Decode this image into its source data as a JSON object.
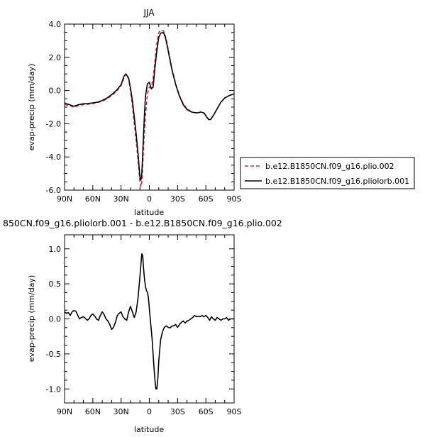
{
  "chart_data": [
    {
      "type": "line",
      "title": "JJA",
      "xlabel": "latitude",
      "ylabel": "evap-precip (mm/day)",
      "xlim": [
        90,
        -90
      ],
      "ylim": [
        -6,
        4
      ],
      "x_ticks": [
        90,
        60,
        30,
        0,
        -30,
        -60,
        -90
      ],
      "x_tick_labels": [
        "90N",
        "60N",
        "30N",
        "0",
        "30S",
        "60S",
        "90S"
      ],
      "y_ticks": [
        -6,
        -4,
        -2,
        0,
        2,
        4
      ],
      "y_tick_labels": [
        "-6.0",
        "-4.0",
        "-2.0",
        "0.0",
        "2.0",
        "4.0"
      ],
      "legend_position": "right",
      "series": [
        {
          "name": "b.e12.B1850CN.f09_g16.plio.002",
          "color": "#e8202a",
          "style": "dashed",
          "x": [
            90,
            85,
            80,
            75,
            70,
            65,
            60,
            55,
            50,
            45,
            40,
            35,
            30,
            27,
            25,
            22,
            20,
            18,
            16,
            14,
            12,
            10,
            9,
            8,
            7,
            6,
            5,
            4,
            2,
            0,
            -2,
            -4,
            -6,
            -8,
            -10,
            -12,
            -15,
            -17,
            -19,
            -21,
            -24,
            -28,
            -32,
            -36,
            -40,
            -45,
            -50,
            -55,
            -58,
            -61,
            -63,
            -65,
            -68,
            -72,
            -76,
            -80,
            -85,
            -90
          ],
          "y": [
            -0.85,
            -0.9,
            -1.0,
            -0.9,
            -0.85,
            -0.82,
            -0.78,
            -0.72,
            -0.65,
            -0.5,
            -0.3,
            -0.05,
            0.3,
            0.75,
            1.0,
            0.7,
            0.0,
            -0.9,
            -2.0,
            -3.0,
            -4.2,
            -5.5,
            -5.8,
            -5.5,
            -4.5,
            -3.3,
            -2.2,
            -1.4,
            -0.2,
            0.2,
            0.2,
            0.7,
            1.8,
            2.8,
            3.5,
            3.62,
            3.6,
            3.3,
            2.8,
            2.2,
            1.3,
            0.4,
            -0.3,
            -0.8,
            -1.1,
            -1.3,
            -1.35,
            -1.3,
            -1.35,
            -1.6,
            -1.75,
            -1.75,
            -1.5,
            -1.1,
            -0.7,
            -0.45,
            -0.3,
            -0.2
          ]
        },
        {
          "name": "b.e12.B1850CN.f09_g16.pliolorb.001",
          "color": "#000000",
          "style": "solid",
          "x": [
            90,
            85,
            80,
            75,
            70,
            65,
            60,
            55,
            50,
            45,
            40,
            35,
            30,
            27,
            25,
            22,
            20,
            18,
            16,
            14,
            12,
            10,
            9,
            8,
            7,
            6,
            5,
            4,
            2,
            0,
            -2,
            -4,
            -6,
            -8,
            -10,
            -12,
            -15,
            -17,
            -19,
            -21,
            -24,
            -28,
            -32,
            -36,
            -40,
            -45,
            -50,
            -55,
            -58,
            -61,
            -63,
            -65,
            -68,
            -72,
            -76,
            -80,
            -85,
            -90
          ],
          "y": [
            -0.75,
            -0.85,
            -0.95,
            -0.85,
            -0.8,
            -0.78,
            -0.75,
            -0.7,
            -0.6,
            -0.45,
            -0.25,
            0.0,
            0.35,
            0.85,
            1.0,
            0.75,
            0.15,
            -0.6,
            -1.6,
            -2.6,
            -3.8,
            -5.2,
            -5.4,
            -5.0,
            -3.8,
            -2.5,
            -1.2,
            -0.3,
            0.4,
            0.5,
            0.1,
            0.2,
            1.4,
            2.4,
            3.2,
            3.45,
            3.5,
            3.2,
            2.7,
            2.1,
            1.25,
            0.35,
            -0.35,
            -0.85,
            -1.15,
            -1.3,
            -1.35,
            -1.3,
            -1.35,
            -1.6,
            -1.75,
            -1.75,
            -1.5,
            -1.1,
            -0.7,
            -0.45,
            -0.3,
            -0.2
          ]
        }
      ]
    },
    {
      "type": "line",
      "title": "850CN.f09_g16.pliolorb.001 - b.e12.B1850CN.f09_g16.plio.002",
      "xlabel": "latitude",
      "ylabel": "evap-precip (mm/day)",
      "xlim": [
        90,
        -90
      ],
      "ylim": [
        -1.2,
        1.2
      ],
      "x_ticks": [
        90,
        60,
        30,
        0,
        -30,
        -60,
        -90
      ],
      "x_tick_labels": [
        "90N",
        "60N",
        "30N",
        "0",
        "30S",
        "60S",
        "90S"
      ],
      "y_ticks": [
        -1.0,
        -0.5,
        0.0,
        0.5,
        1.0
      ],
      "y_tick_labels": [
        "-1.0",
        "-0.5",
        "0.0",
        "0.5",
        "1.0"
      ],
      "series": [
        {
          "color": "#000000",
          "style": "solid",
          "x": [
            90,
            88,
            86,
            84,
            82,
            80,
            78,
            76,
            74,
            72,
            70,
            68,
            66,
            64,
            62,
            60,
            58,
            56,
            54,
            52,
            50,
            48,
            46,
            44,
            42,
            40,
            38,
            36,
            34,
            32,
            30,
            28,
            26,
            24,
            22,
            20,
            18,
            16,
            14,
            12,
            10,
            8,
            7,
            6,
            5,
            4,
            3,
            2,
            1,
            0,
            -1,
            -2,
            -3,
            -4,
            -5,
            -6,
            -7,
            -8,
            -9,
            -10,
            -11,
            -12,
            -14,
            -16,
            -18,
            -20,
            -22,
            -24,
            -26,
            -28,
            -30,
            -32,
            -34,
            -36,
            -38,
            -40,
            -42,
            -44,
            -46,
            -48,
            -50,
            -52,
            -54,
            -56,
            -58,
            -60,
            -62,
            -64,
            -66,
            -68,
            -70,
            -72,
            -74,
            -76,
            -78,
            -80,
            -82,
            -84,
            -86,
            -88,
            -90
          ],
          "y": [
            0.1,
            0.08,
            0.09,
            0.05,
            0.1,
            0.12,
            0.11,
            0.05,
            0.0,
            0.02,
            0.03,
            0.01,
            -0.02,
            0.0,
            0.05,
            0.07,
            0.04,
            0.0,
            -0.02,
            0.05,
            0.1,
            0.06,
            0.0,
            -0.03,
            -0.08,
            -0.15,
            -0.12,
            -0.05,
            0.05,
            0.08,
            0.1,
            0.03,
            0.0,
            -0.02,
            0.1,
            0.18,
            0.1,
            0.02,
            0.1,
            0.3,
            0.6,
            0.93,
            0.9,
            0.7,
            0.55,
            0.45,
            0.4,
            0.38,
            0.3,
            0.15,
            0.0,
            -0.15,
            -0.3,
            -0.5,
            -0.7,
            -0.88,
            -1.0,
            -1.0,
            -0.85,
            -0.6,
            -0.45,
            -0.3,
            -0.18,
            -0.12,
            -0.1,
            -0.12,
            -0.13,
            -0.1,
            -0.1,
            -0.08,
            -0.12,
            -0.08,
            -0.05,
            -0.03,
            -0.06,
            -0.03,
            -0.02,
            0.0,
            0.02,
            0.05,
            0.03,
            0.04,
            0.03,
            0.05,
            0.03,
            0.05,
            0.02,
            -0.02,
            0.03,
            0.0,
            -0.02,
            0.02,
            0.0,
            -0.02,
            0.0,
            0.0,
            0.02,
            -0.02,
            0.0,
            0.0,
            0.0
          ]
        }
      ]
    }
  ]
}
